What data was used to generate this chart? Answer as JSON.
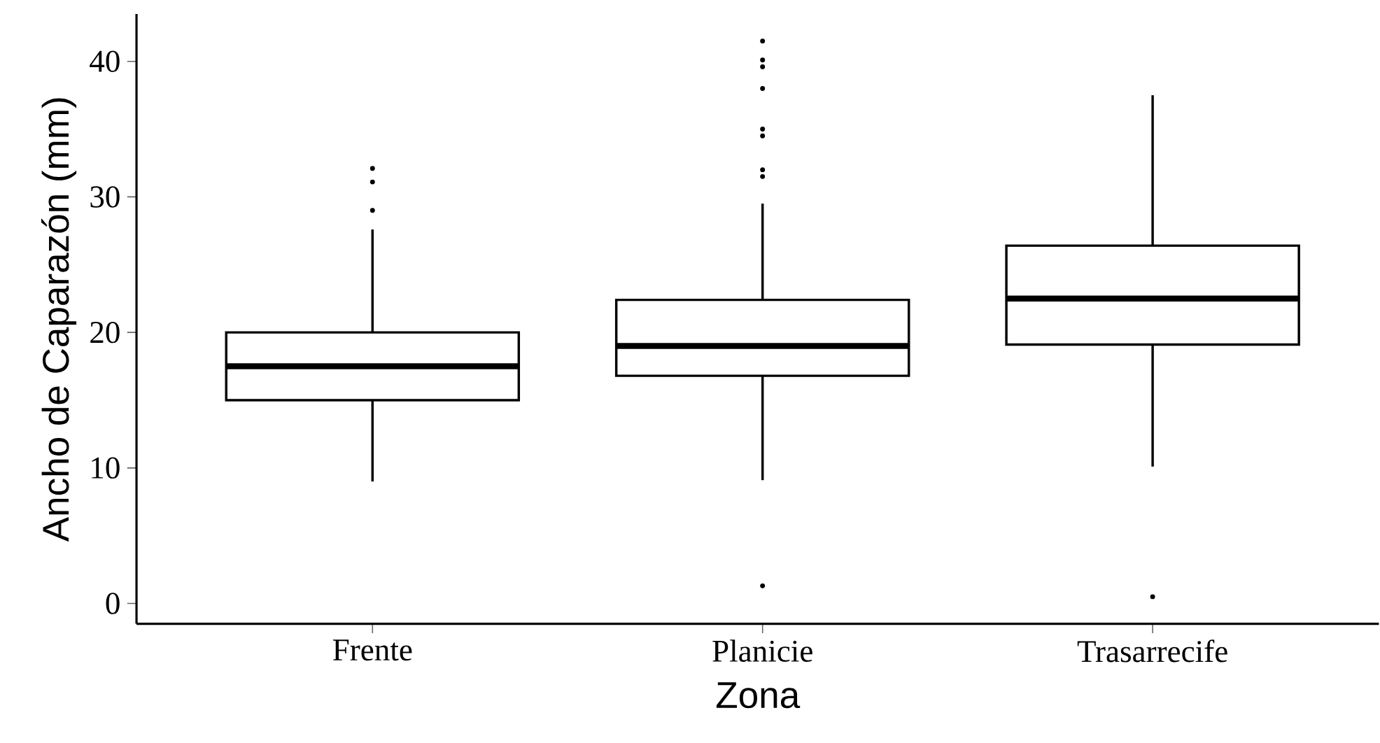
{
  "chart_data": {
    "type": "box",
    "xlabel": "Zona",
    "ylabel": "Ancho de Caparazón (mm)",
    "categories": [
      "Frente",
      "Planicie",
      "Trasarrecife"
    ],
    "series": [
      {
        "color": "#000000",
        "boxes": [
          {
            "low": 9.0,
            "q1": 15.0,
            "median": 17.5,
            "q3": 20.0,
            "high": 27.6,
            "outliers": [
              29.0,
              31.1,
              32.1
            ]
          },
          {
            "low": 9.1,
            "q1": 16.8,
            "median": 19.0,
            "q3": 22.4,
            "high": 29.5,
            "outliers": [
              1.3,
              31.5,
              32.0,
              34.5,
              35.0,
              38.0,
              39.6,
              40.1,
              41.5
            ]
          },
          {
            "low": 10.1,
            "q1": 19.1,
            "median": 22.5,
            "q3": 26.4,
            "high": 37.5,
            "outliers": [
              0.5
            ]
          }
        ]
      }
    ],
    "ylim": [
      -1.5,
      43.5
    ],
    "yticks": [
      0,
      10,
      20,
      30,
      40
    ]
  }
}
